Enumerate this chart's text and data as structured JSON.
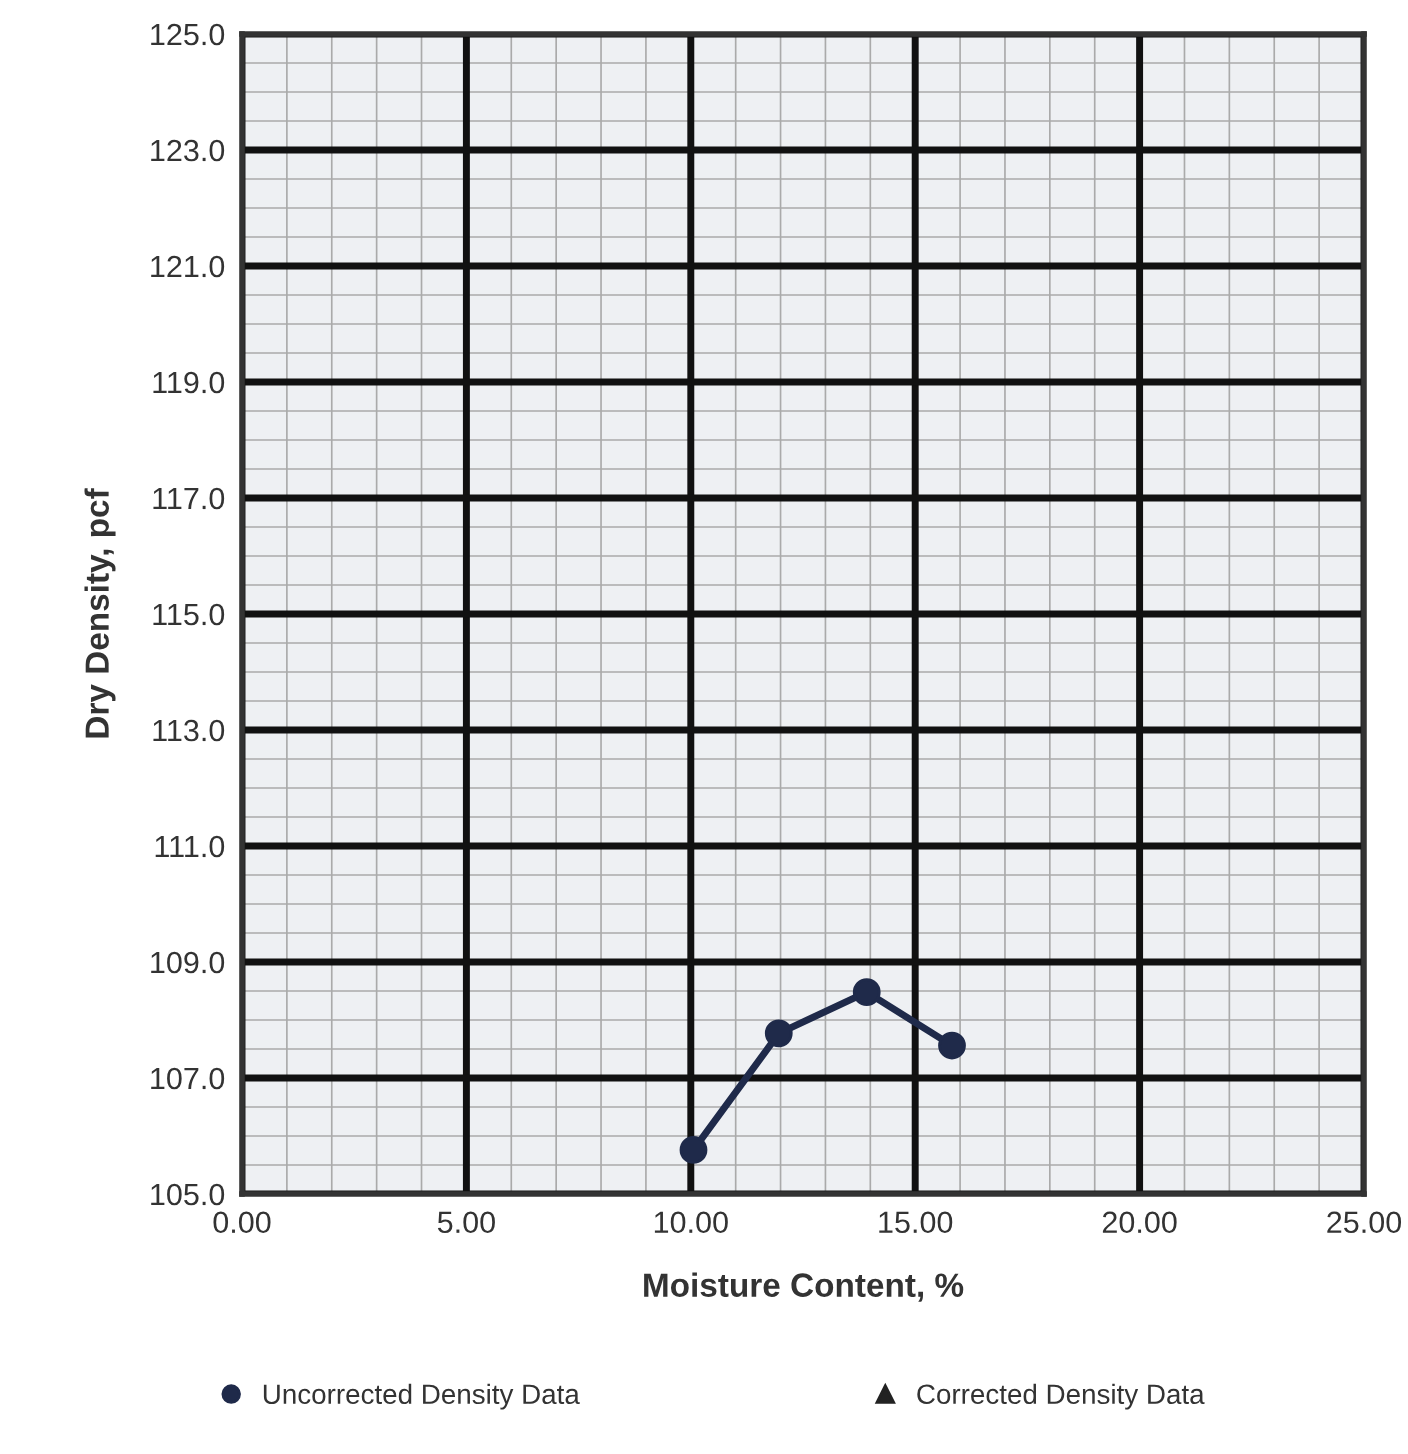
{
  "chart_data": {
    "type": "line",
    "xlabel": "Moisture Content, %",
    "ylabel": "Dry Density, pcf",
    "xlim": [
      0,
      25
    ],
    "ylim": [
      105,
      125
    ],
    "xticks": [
      {
        "value": 0,
        "label": "0.00"
      },
      {
        "value": 5,
        "label": "5.00"
      },
      {
        "value": 10,
        "label": "10.00"
      },
      {
        "value": 15,
        "label": "15.00"
      },
      {
        "value": 20,
        "label": "20.00"
      },
      {
        "value": 25,
        "label": "25.00"
      }
    ],
    "yticks": [
      {
        "value": 105,
        "label": "105.0"
      },
      {
        "value": 107,
        "label": "107.0"
      },
      {
        "value": 109,
        "label": "109.0"
      },
      {
        "value": 111,
        "label": "111.0"
      },
      {
        "value": 113,
        "label": "113.0"
      },
      {
        "value": 115,
        "label": "115.0"
      },
      {
        "value": 117,
        "label": "117.0"
      },
      {
        "value": 119,
        "label": "119.0"
      },
      {
        "value": 121,
        "label": "121.0"
      },
      {
        "value": 123,
        "label": "123.0"
      },
      {
        "value": 125,
        "label": "125.0"
      }
    ],
    "grid": true,
    "legend": "bottom",
    "series": [
      {
        "name": "Uncorrected Density Data",
        "marker": "circle",
        "color": "#1f2a4a",
        "x": [
          10.06,
          11.96,
          13.92,
          15.82
        ],
        "values": [
          105.76,
          107.77,
          108.48,
          107.56
        ]
      },
      {
        "name": "Corrected Density Data",
        "type": "scatter",
        "marker": "triangle",
        "color": "#222222"
      }
    ]
  }
}
